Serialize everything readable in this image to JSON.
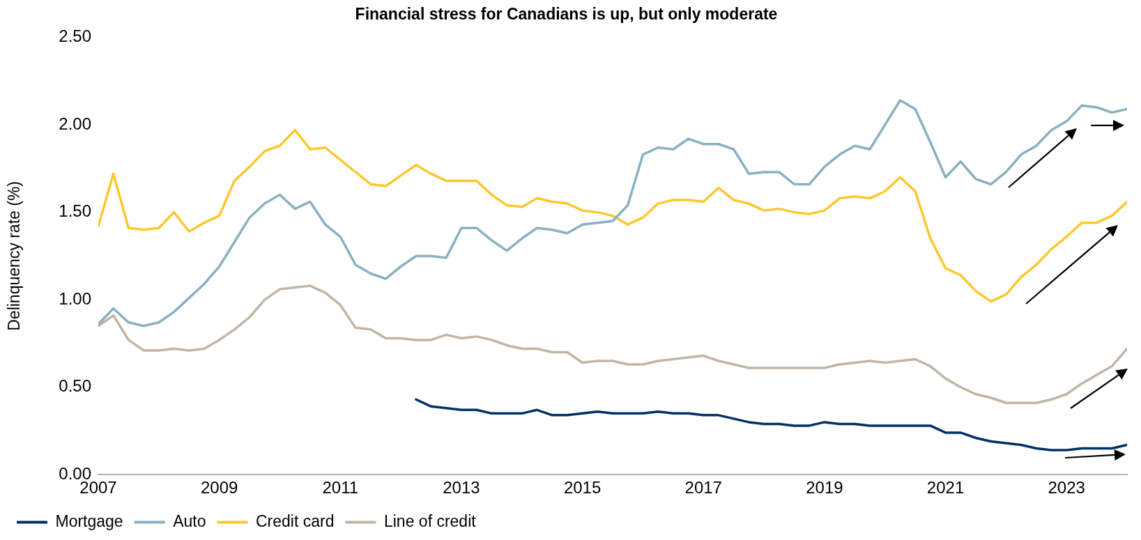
{
  "chart_data": {
    "type": "line",
    "title": "Financial stress for Canadians is up, but only moderate",
    "ylabel": "Delinquency rate (%)",
    "x": [
      2007,
      2007.25,
      2007.5,
      2007.75,
      2008,
      2008.25,
      2008.5,
      2008.75,
      2009,
      2009.25,
      2009.5,
      2009.75,
      2010,
      2010.25,
      2010.5,
      2010.75,
      2011,
      2011.25,
      2011.5,
      2011.75,
      2012,
      2012.25,
      2012.5,
      2012.75,
      2013,
      2013.25,
      2013.5,
      2013.75,
      2014,
      2014.25,
      2014.5,
      2014.75,
      2015,
      2015.25,
      2015.5,
      2015.75,
      2016,
      2016.25,
      2016.5,
      2016.75,
      2017,
      2017.25,
      2017.5,
      2017.75,
      2018,
      2018.25,
      2018.5,
      2018.75,
      2019,
      2019.25,
      2019.5,
      2019.75,
      2020,
      2020.25,
      2020.5,
      2020.75,
      2021,
      2021.25,
      2021.5,
      2021.75,
      2022,
      2022.25,
      2022.5,
      2022.75,
      2023,
      2023.25,
      2023.5,
      2023.75,
      2024
    ],
    "series": [
      {
        "name": "Mortgage",
        "color": "#003168",
        "values": [
          null,
          null,
          null,
          null,
          null,
          null,
          null,
          null,
          null,
          null,
          null,
          null,
          null,
          null,
          null,
          null,
          null,
          null,
          null,
          null,
          null,
          0.43,
          0.39,
          0.38,
          0.37,
          0.37,
          0.35,
          0.35,
          0.35,
          0.37,
          0.34,
          0.34,
          0.35,
          0.36,
          0.35,
          0.35,
          0.35,
          0.36,
          0.35,
          0.35,
          0.34,
          0.34,
          0.32,
          0.3,
          0.29,
          0.29,
          0.28,
          0.28,
          0.3,
          0.29,
          0.29,
          0.28,
          0.28,
          0.28,
          0.28,
          0.28,
          0.24,
          0.24,
          0.21,
          0.19,
          0.18,
          0.17,
          0.15,
          0.14,
          0.14,
          0.15,
          0.15,
          0.15,
          0.17
        ]
      },
      {
        "name": "Auto",
        "color": "#8ab0c1",
        "values": [
          0.86,
          0.95,
          0.87,
          0.85,
          0.87,
          0.93,
          1.01,
          1.09,
          1.19,
          1.33,
          1.47,
          1.55,
          1.6,
          1.52,
          1.56,
          1.43,
          1.36,
          1.2,
          1.15,
          1.12,
          1.19,
          1.25,
          1.25,
          1.24,
          1.41,
          1.41,
          1.34,
          1.28,
          1.35,
          1.41,
          1.4,
          1.38,
          1.43,
          1.44,
          1.45,
          1.54,
          1.83,
          1.87,
          1.86,
          1.92,
          1.89,
          1.89,
          1.86,
          1.72,
          1.73,
          1.73,
          1.66,
          1.66,
          1.76,
          1.83,
          1.88,
          1.86,
          2.0,
          2.14,
          2.09,
          1.9,
          1.7,
          1.79,
          1.69,
          1.66,
          1.73,
          1.83,
          1.88,
          1.97,
          2.02,
          2.11,
          2.1,
          2.07,
          2.09
        ]
      },
      {
        "name": "Credit card",
        "color": "#ffc72c",
        "values": [
          1.42,
          1.72,
          1.41,
          1.4,
          1.41,
          1.5,
          1.39,
          1.44,
          1.48,
          1.68,
          1.76,
          1.85,
          1.88,
          1.97,
          1.86,
          1.87,
          1.8,
          1.73,
          1.66,
          1.65,
          1.71,
          1.77,
          1.72,
          1.68,
          1.68,
          1.68,
          1.6,
          1.54,
          1.53,
          1.58,
          1.56,
          1.55,
          1.51,
          1.5,
          1.48,
          1.43,
          1.47,
          1.55,
          1.57,
          1.57,
          1.56,
          1.64,
          1.57,
          1.55,
          1.51,
          1.52,
          1.5,
          1.49,
          1.51,
          1.58,
          1.59,
          1.58,
          1.62,
          1.7,
          1.62,
          1.35,
          1.18,
          1.14,
          1.05,
          0.99,
          1.03,
          1.13,
          1.2,
          1.29,
          1.36,
          1.44,
          1.44,
          1.48,
          1.56
        ]
      },
      {
        "name": "Line of credit",
        "color": "#c2b5a4",
        "values": [
          0.85,
          0.91,
          0.77,
          0.71,
          0.71,
          0.72,
          0.71,
          0.72,
          0.77,
          0.83,
          0.9,
          1.0,
          1.06,
          1.07,
          1.08,
          1.04,
          0.97,
          0.84,
          0.83,
          0.78,
          0.78,
          0.77,
          0.77,
          0.8,
          0.78,
          0.79,
          0.77,
          0.74,
          0.72,
          0.72,
          0.7,
          0.7,
          0.64,
          0.65,
          0.65,
          0.63,
          0.63,
          0.65,
          0.66,
          0.67,
          0.68,
          0.65,
          0.63,
          0.61,
          0.61,
          0.61,
          0.61,
          0.61,
          0.61,
          0.63,
          0.64,
          0.65,
          0.64,
          0.65,
          0.66,
          0.62,
          0.55,
          0.5,
          0.46,
          0.44,
          0.41,
          0.41,
          0.41,
          0.43,
          0.46,
          0.52,
          0.57,
          0.62,
          0.72
        ]
      }
    ],
    "xlim": [
      2007,
      2024
    ],
    "xticks": [
      2007,
      2009,
      2011,
      2013,
      2015,
      2017,
      2019,
      2021,
      2023
    ],
    "ylim": [
      0,
      2.5
    ],
    "yticks": [
      {
        "value": 0,
        "label": "0.00"
      },
      {
        "value": 0.5,
        "label": "0.50"
      },
      {
        "value": 1,
        "label": "1.00"
      },
      {
        "value": 1.5,
        "label": "1.50"
      },
      {
        "value": 2,
        "label": "2.00"
      },
      {
        "value": 2.5,
        "label": "2.50"
      }
    ],
    "grid": false,
    "legend": "bottom",
    "marker": "none",
    "line_style": "solid"
  }
}
